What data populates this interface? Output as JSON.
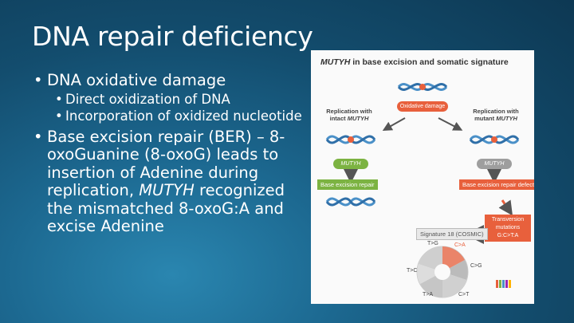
{
  "slide": {
    "title": "DNA repair deficiency",
    "bullets": {
      "b1": "DNA oxidative damage",
      "b1_sub1": "Direct oxidization of DNA",
      "b1_sub2": "Incorporation of oxidized nucleotide",
      "b2_part1": "Base excision repair (BER) – 8-oxoGuanine (8-oxoG) leads to insertion of Adenine during replication,",
      "b2_italic": "MUTYH",
      "b2_part2": "recognized the mismatched 8-oxoG:A and excise Adenine"
    }
  },
  "figure": {
    "title_italic": "MUTYH",
    "title_rest": "in base excision and somatic signature",
    "oxidative_damage": "Oxidative damage",
    "left_heading_1": "Replication with",
    "left_heading_2": "intact",
    "left_heading_gene": "MUTYH",
    "right_heading_1": "Replication with",
    "right_heading_2": "mutant",
    "right_heading_gene": "MUTYH",
    "left_gene_pill": "MUTYH",
    "right_gene_pill": "MUTYH",
    "left_repair": "Base excision repair",
    "right_repair": "Base excision repair defect",
    "transversion_1": "Transversion",
    "transversion_2": "mutations",
    "transversion_3": "G:C>T:A",
    "signature": "Signature 18 (COSMIC)",
    "wheel_labels": [
      "T>G",
      "C>A",
      "C>G",
      "C>T",
      "T>A",
      "T>C"
    ],
    "colors": {
      "green": "#7cb342",
      "orange_red": "#e8603c",
      "gray": "#9e9e9e",
      "dna_blue": "#4a90c8"
    }
  }
}
